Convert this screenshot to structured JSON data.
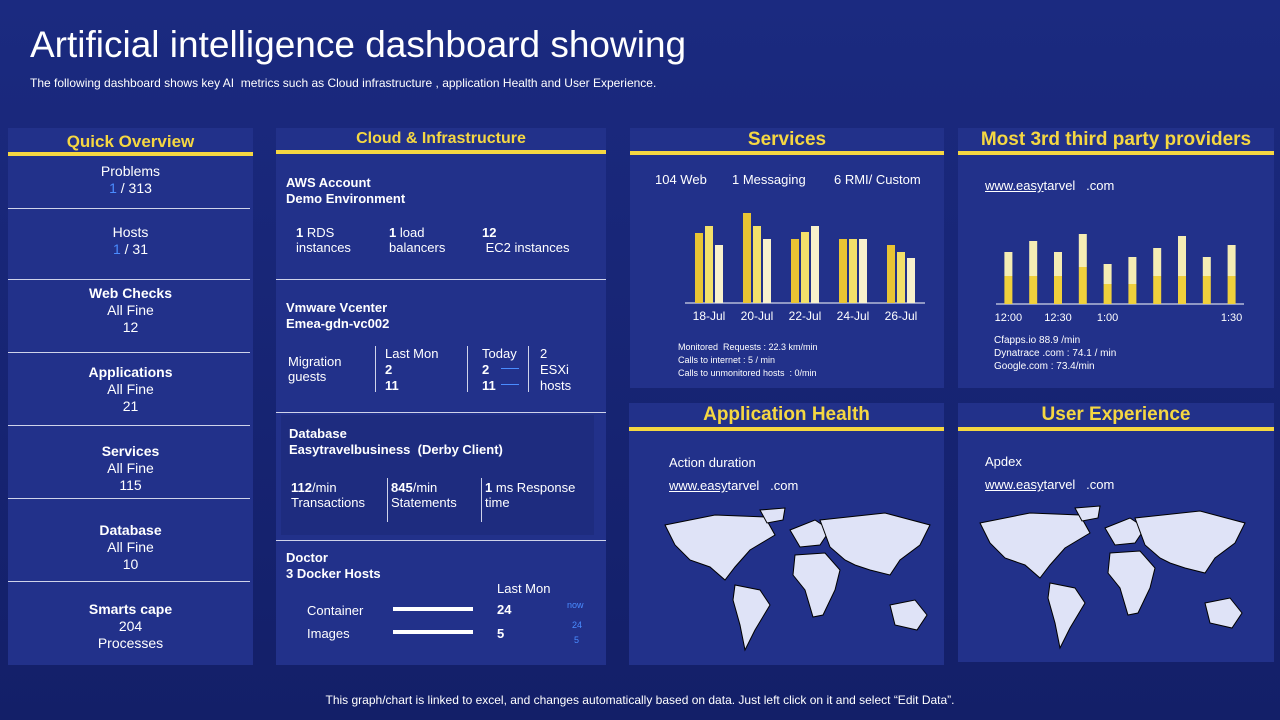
{
  "header": {
    "title": "Artificial intelligence dashboard showing",
    "subtitle": "The following dashboard shows key AI  metrics such as Cloud infrastructure , application Health and User Experience."
  },
  "quick_overview": {
    "title": "Quick Overview",
    "items": [
      {
        "label": "Problems",
        "count": "1",
        "total": "/ 313"
      },
      {
        "label": "Hosts",
        "count": "1",
        "total": "/ 31"
      },
      {
        "label": "Web Checks",
        "status": "All Fine",
        "value": "12"
      },
      {
        "label": "Applications",
        "status": "All Fine",
        "value": "21"
      },
      {
        "label": "Services",
        "status": "All Fine",
        "value": "115"
      },
      {
        "label": "Database",
        "status": "All Fine",
        "value": "10"
      },
      {
        "label": "Smarts cape",
        "value": "204",
        "unit": "Processes"
      }
    ]
  },
  "cloud": {
    "title": "Cloud & Infrastructure",
    "aws": {
      "name": "AWS Account",
      "env": "Demo Environment",
      "stats": [
        {
          "value": "1",
          "label": "RDS",
          "sub": "instances"
        },
        {
          "value": "1",
          "label": "load",
          "sub": "balancers"
        },
        {
          "value": "12",
          "sub": "EC2 instances"
        }
      ]
    },
    "vmware": {
      "name": "Vmware Vcenter",
      "id": "Emea-gdn-vc002",
      "label": "Migration guests",
      "last_mon": {
        "title": "Last Mon",
        "values": [
          "2",
          "11"
        ]
      },
      "today": {
        "title": "Today",
        "values": [
          "2",
          "11"
        ]
      },
      "hosts": {
        "value": "2",
        "label": "ESXi hosts"
      }
    },
    "database": {
      "name": "Database",
      "client": "Easytravelbusiness  (Derby Client)",
      "stats": [
        {
          "value": "112",
          "unit": "/min",
          "label": "Transactions"
        },
        {
          "value": "845",
          "unit": "/min",
          "label": "Statements"
        },
        {
          "value": "1",
          "label": "ms Response time"
        }
      ]
    },
    "docker": {
      "name": "Doctor",
      "hosts": "3 Docker Hosts",
      "column": "Last Mon",
      "rows": [
        {
          "label": "Container",
          "value": "24"
        },
        {
          "label": "Images",
          "value": "5"
        }
      ],
      "now": {
        "label": "now",
        "values": [
          "24",
          "5"
        ]
      }
    }
  },
  "services": {
    "title": "Services",
    "chart": {
      "type": "bar",
      "categories": [
        "18-Jul",
        "20-Jul",
        "22-Jul",
        "24-Jul",
        "26-Jul"
      ],
      "ylim": [
        0,
        100
      ],
      "series": [
        {
          "name": "104 Web",
          "color": "#e9c433",
          "values": [
            70,
            90,
            64,
            64,
            58
          ]
        },
        {
          "name": "1 Messaging",
          "color": "#f3e06a",
          "values": [
            77,
            77,
            71,
            64,
            51
          ]
        },
        {
          "name": "6 RMI/ Custom",
          "color": "#f8f1cc",
          "values": [
            58,
            64,
            77,
            64,
            45
          ]
        }
      ]
    },
    "stats": [
      "Monitored  Requests : 22.3 km/min",
      "Calls to internet : 5 / min",
      "Calls to unmonitored hosts  : 0/min"
    ]
  },
  "providers": {
    "title": "Most 3rd  third party providers",
    "site": {
      "link": "www.easy",
      "rest": "tarvel   .com"
    },
    "chart": {
      "type": "stacked-bar",
      "categories": [
        "12:00",
        null,
        "12:30",
        null,
        "1:00",
        null,
        null,
        null,
        null,
        "1:30"
      ],
      "ylim": [
        0,
        80
      ],
      "series": [
        {
          "color": "#f0d03c",
          "values": [
            28,
            28,
            28,
            37,
            20,
            20,
            28,
            28,
            28,
            28
          ]
        },
        {
          "color": "#f5edb4",
          "values": [
            24,
            35,
            24,
            33,
            20,
            27,
            28,
            40,
            19,
            31
          ]
        }
      ]
    },
    "stats": [
      "Cfapps.io 88.9 /min",
      "Dynatrace .com : 74.1 / min",
      "Google.com : 73.4/min"
    ]
  },
  "app_health": {
    "title": "Application Health",
    "metric": "Action duration",
    "site": {
      "link": "www.easy",
      "rest": "tarvel   .com"
    }
  },
  "user_experience": {
    "title": "User Experience",
    "metric": "Apdex",
    "site": {
      "link": "www.easy",
      "rest": "tarvel   .com"
    }
  },
  "footer": "This graph/chart is linked to excel, and changes automatically based on data. Just left click on it and select “Edit Data”."
}
